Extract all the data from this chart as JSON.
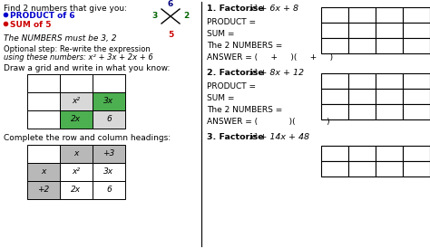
{
  "bg_color": "#ffffff",
  "fig_w": 4.74,
  "fig_h": 2.74,
  "dpi": 100,
  "lp": {
    "title": "Find 2 numbers that give you:",
    "b1_text": "PRODUCT of 6",
    "b2_text": "SUM of 5",
    "b1_color": "#0000cc",
    "b2_color": "#cc0000",
    "numbers_text": "The NUMBERS must be 3, 2",
    "opt1": "Optional step: Re-write the expression",
    "opt2": "using these numbers: x² + 3x + 2x + 6",
    "draw_text": "Draw a grid and write in what you know:",
    "complete_text": "Complete the row and column headings:",
    "cross_top": "6",
    "cross_left": "3",
    "cross_right": "2",
    "cross_bottom": "5",
    "cross_top_color": "#000080",
    "cross_lr_color": "#006400",
    "cross_bottom_color": "#cc0000",
    "g1_cells": [
      [
        "",
        "",
        ""
      ],
      [
        "",
        "x²",
        "3x"
      ],
      [
        "",
        "2x",
        "6"
      ]
    ],
    "g1_colors": [
      [
        "#ffffff",
        "#ffffff",
        "#ffffff"
      ],
      [
        "#ffffff",
        "#d8d8d8",
        "#4caf50"
      ],
      [
        "#ffffff",
        "#4caf50",
        "#d8d8d8"
      ]
    ],
    "g2_cells": [
      [
        "",
        "x",
        "+3"
      ],
      [
        "x",
        "x²",
        "3x"
      ],
      [
        "+2",
        "2x",
        "6"
      ]
    ],
    "g2_colors": [
      [
        "#ffffff",
        "#b8b8b8",
        "#b8b8b8"
      ],
      [
        "#b8b8b8",
        "#ffffff",
        "#ffffff"
      ],
      [
        "#b8b8b8",
        "#ffffff",
        "#ffffff"
      ]
    ]
  },
  "rp": {
    "q1_head": "1. Factorise ",
    "q1_expr": "x² + 6x + 8",
    "q1_sub": [
      "PRODUCT =",
      "SUM =",
      "The 2 NUMBERS =",
      "ANSWER = (     +     )(     +     )"
    ],
    "q2_head": "2. Factorise ",
    "q2_expr": "x² + 8x + 12",
    "q2_sub": [
      "PRODUCT =",
      "SUM =",
      "The 2 NUMBERS =",
      "ANSWER = (            )(            )"
    ],
    "q3_head": "3. Factorise ",
    "q3_expr": "x² + 14x + 48"
  }
}
